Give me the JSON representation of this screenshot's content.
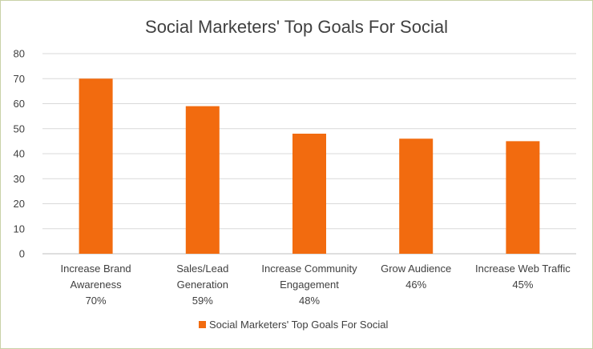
{
  "chart_data": {
    "type": "bar",
    "title": "Social Marketers' Top Goals For Social",
    "xlabel": "",
    "ylabel": "",
    "ylim": [
      0,
      80
    ],
    "yticks": [
      0,
      10,
      20,
      30,
      40,
      50,
      60,
      70,
      80
    ],
    "grid": true,
    "legend_position": "bottom",
    "categories": [
      [
        "Increase Brand",
        "Awareness",
        "70%"
      ],
      [
        "Sales/Lead",
        "Generation",
        "59%"
      ],
      [
        "Increase Community",
        "Engagement",
        "48%"
      ],
      [
        "Grow Audience",
        "46%"
      ],
      [
        "Increase Web Traffic",
        "45%"
      ]
    ],
    "series": [
      {
        "name": "Social Marketers' Top Goals For Social",
        "values": [
          70,
          59,
          48,
          46,
          45
        ],
        "color": "#f26b0f"
      }
    ]
  }
}
